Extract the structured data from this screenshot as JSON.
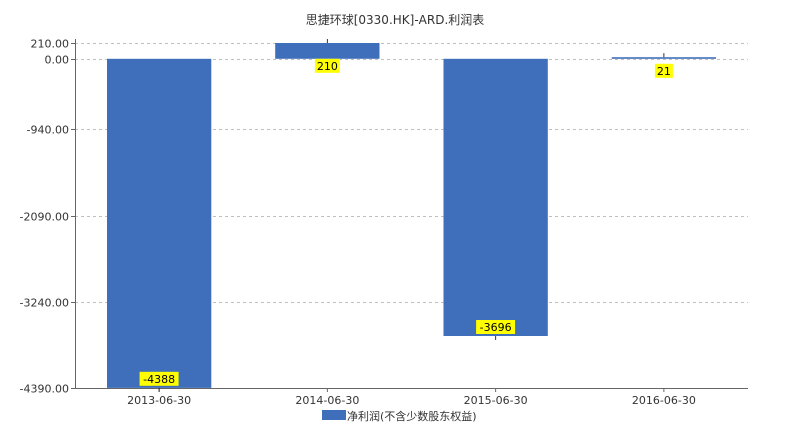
{
  "chart_data": {
    "type": "bar",
    "title": "思捷环球[0330.HK]-ARD.利润表",
    "categories": [
      "2013-06-30",
      "2014-06-30",
      "2015-06-30",
      "2016-06-30"
    ],
    "series": [
      {
        "name": "净利润(不含少数股东权益)",
        "values": [
          -4388,
          210,
          -3696,
          21
        ]
      }
    ],
    "data_labels": [
      "-4388",
      "210",
      "-3696",
      "21"
    ],
    "y_ticks": [
      210,
      0,
      -940,
      -2090,
      -3240,
      -4390
    ],
    "y_tick_labels": [
      "210.00",
      "0.00",
      "-940.00",
      "-2090.00",
      "-3240.00",
      "-4390.00"
    ],
    "ylim": [
      -4390,
      210
    ],
    "xlabel": "",
    "ylabel": "",
    "grid": "horizontal dashed",
    "legend_position": "bottom-center"
  },
  "colors": {
    "bar": "#3f6fba",
    "label_bg": "#ffff00",
    "grid": "#c0c0c0",
    "axis": "#666666"
  }
}
